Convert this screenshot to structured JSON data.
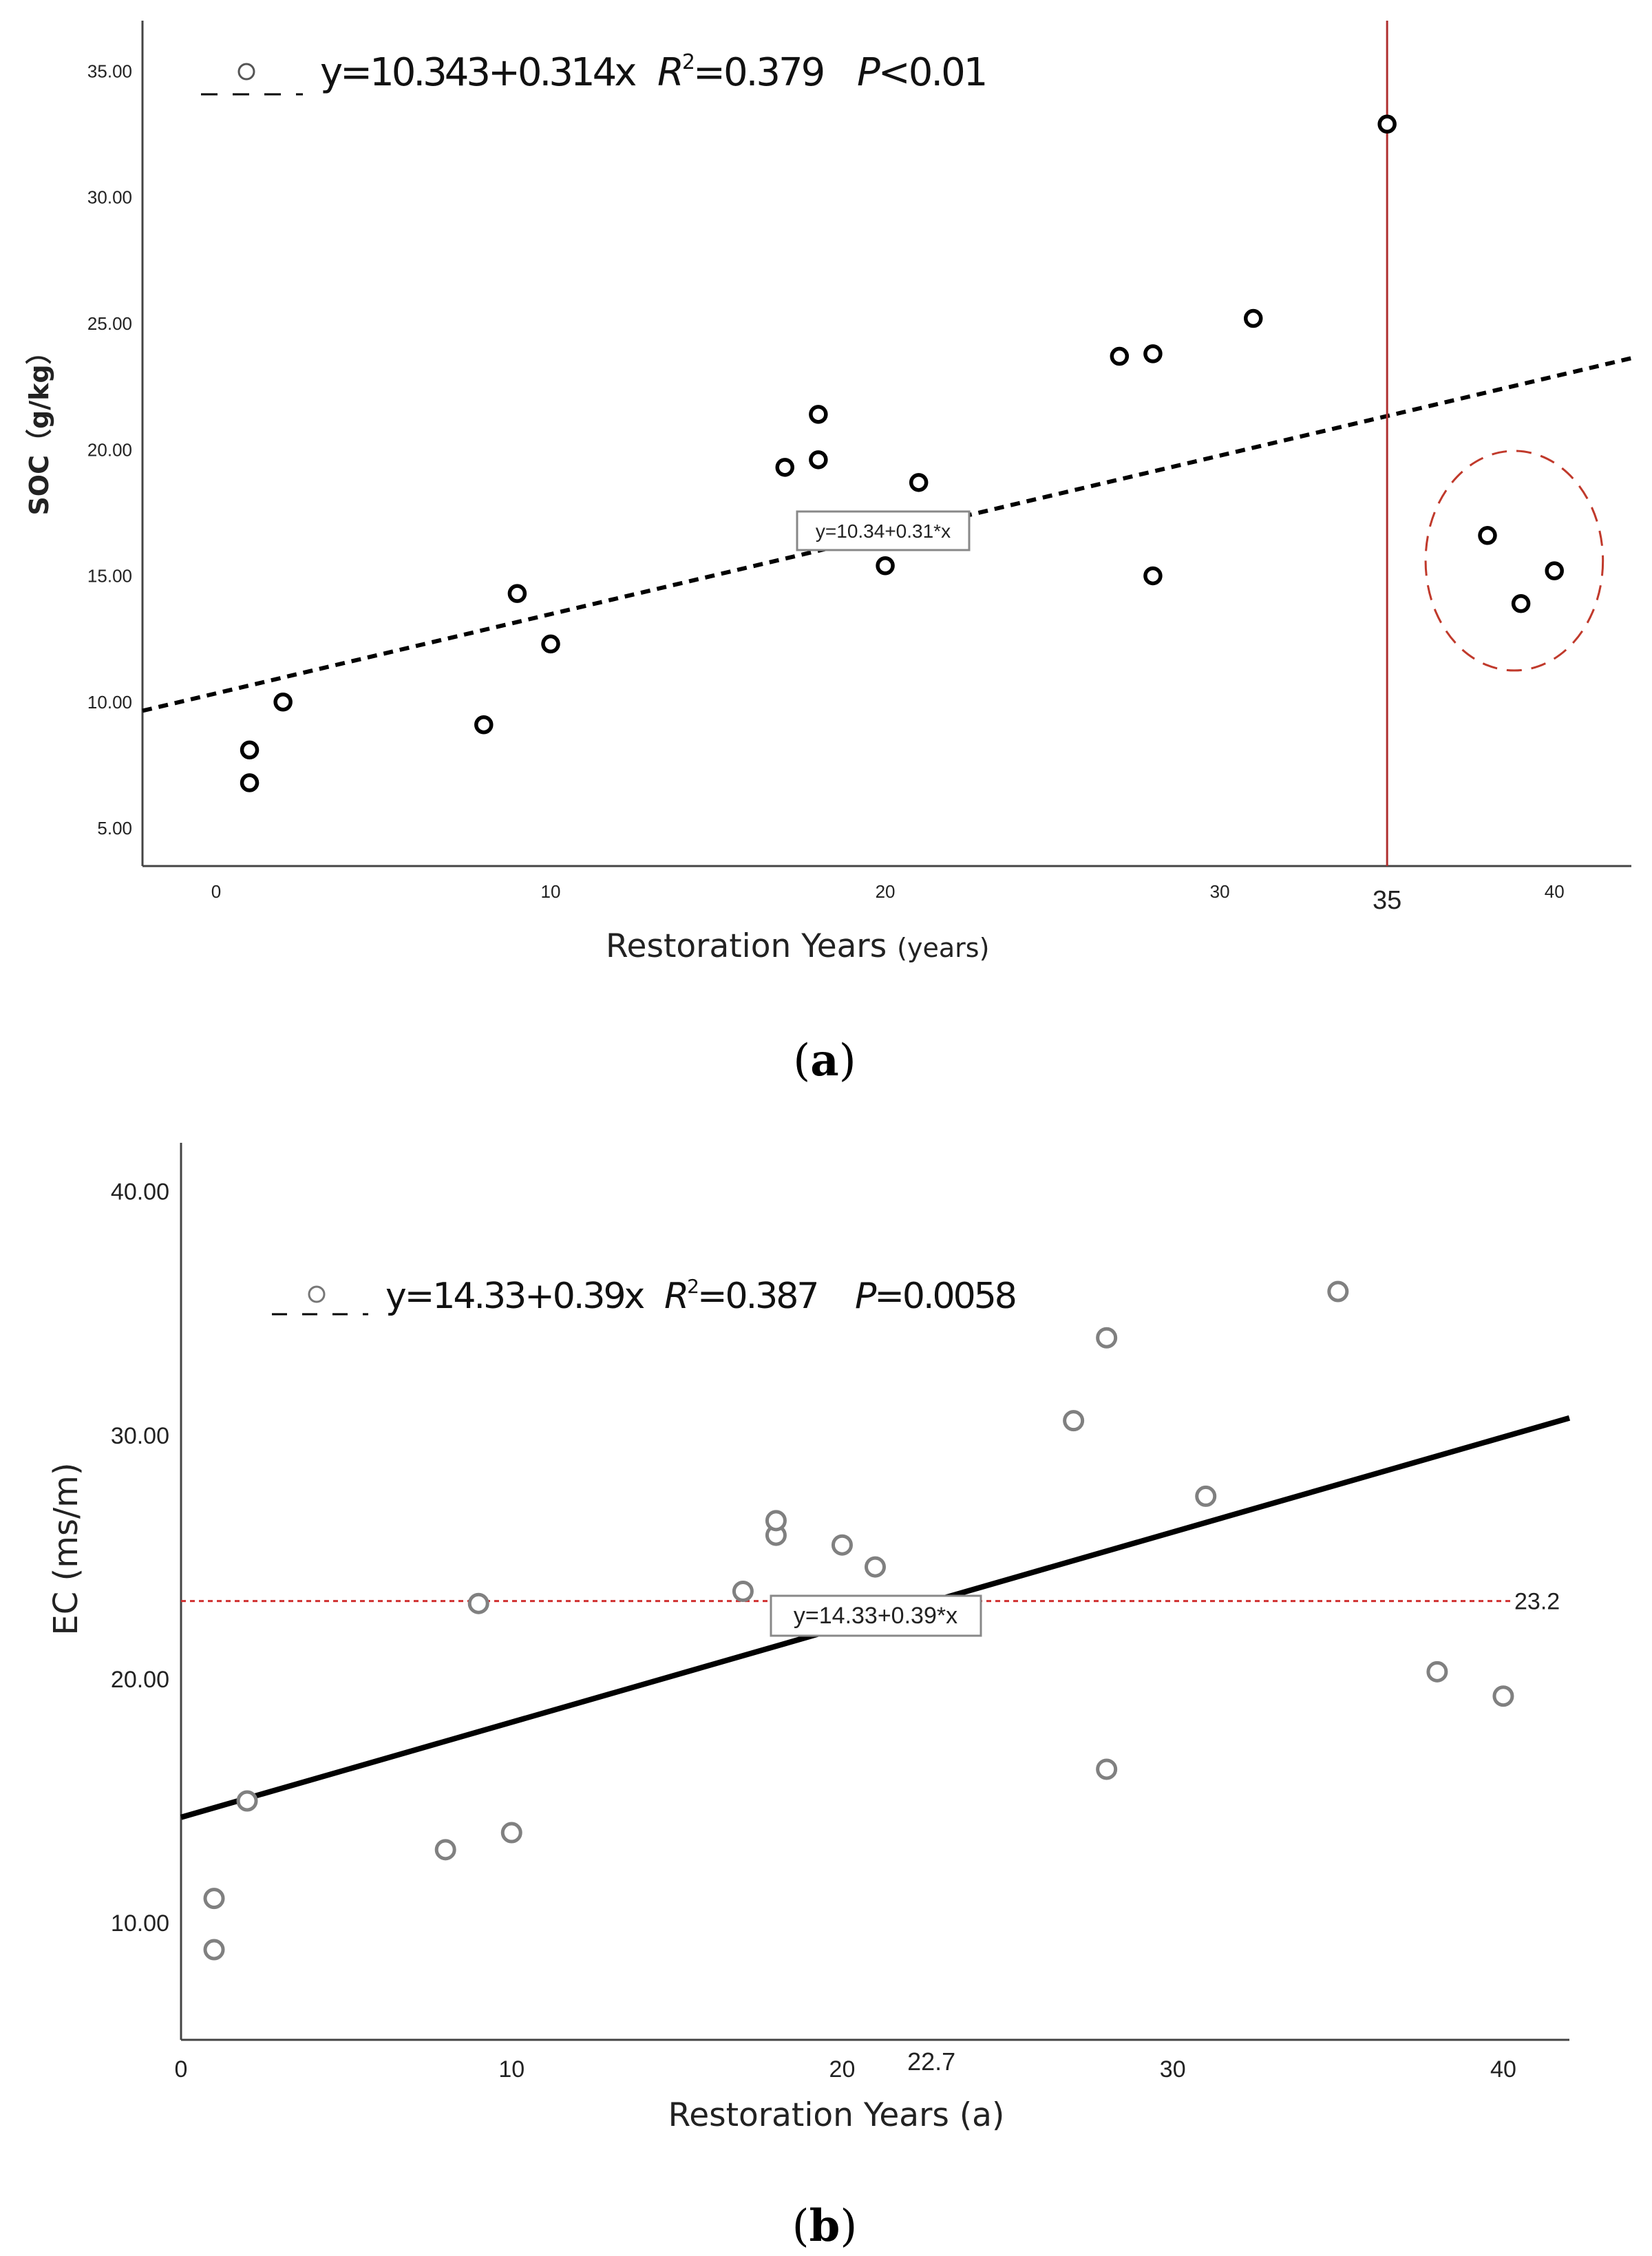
{
  "chart_data": [
    {
      "panel_label_open": "(",
      "panel_label_letter": "a",
      "panel_label_close": ")",
      "type": "scatter",
      "xlabel_main": "Restoration Years ",
      "xlabel_unit": "(years)",
      "ylabel": "SOC（g/kg）",
      "xlim": [
        -2.2,
        42.3
      ],
      "ylim": [
        3.5,
        37.0
      ],
      "x_ticks": [
        0,
        10,
        20,
        30,
        40
      ],
      "x_tick_labels": [
        "0",
        "10",
        "20",
        "30",
        "40"
      ],
      "y_ticks": [
        5,
        10,
        15,
        20,
        25,
        30,
        35
      ],
      "y_tick_labels": [
        "5.00",
        "10.00",
        "15.00",
        "20.00",
        "25.00",
        "30.00",
        "35.00"
      ],
      "points": [
        {
          "x": 1,
          "y": 6.8
        },
        {
          "x": 1,
          "y": 8.1
        },
        {
          "x": 2,
          "y": 10.0
        },
        {
          "x": 8,
          "y": 9.1
        },
        {
          "x": 9,
          "y": 14.3
        },
        {
          "x": 10,
          "y": 12.3
        },
        {
          "x": 17,
          "y": 19.3
        },
        {
          "x": 18,
          "y": 19.6
        },
        {
          "x": 18,
          "y": 21.4
        },
        {
          "x": 20,
          "y": 15.4
        },
        {
          "x": 21,
          "y": 18.7
        },
        {
          "x": 27,
          "y": 23.7
        },
        {
          "x": 28,
          "y": 23.8
        },
        {
          "x": 28,
          "y": 15.0
        },
        {
          "x": 31,
          "y": 25.2
        },
        {
          "x": 35,
          "y": 32.9
        },
        {
          "x": 38,
          "y": 16.6
        },
        {
          "x": 39,
          "y": 13.9
        },
        {
          "x": 40,
          "y": 15.2
        }
      ],
      "fit": {
        "intercept": 10.343,
        "slope": 0.314,
        "style": "dashed",
        "label": "y=10.34+0.31*x",
        "label_at": [
          20,
          16.7
        ]
      },
      "reference_line": {
        "orientation": "vertical",
        "x": 35,
        "label": "35",
        "color": "#b03030"
      },
      "highlight_ellipse": {
        "cx": 38.8,
        "cy": 15.6,
        "rx": 2.65,
        "ry": 4.35,
        "color": "#c0392b"
      },
      "legend": {
        "eq": "y=10.343+0.314x",
        "r2_label": "R",
        "r2_sup": "2",
        "r2_value": "=0.379",
        "p_label": "P",
        "p_value": "<0.01"
      },
      "marker_color": "#000000"
    },
    {
      "panel_label_open": "(",
      "panel_label_letter": "b",
      "panel_label_close": ")",
      "type": "scatter",
      "xlabel_main": "Restoration Years (a)",
      "ylabel": "EC (ms/m)",
      "xlim": [
        0,
        42
      ],
      "ylim": [
        5.2,
        42.0
      ],
      "x_ticks": [
        0,
        10,
        20,
        30,
        40
      ],
      "x_tick_labels": [
        "0",
        "10",
        "20",
        "30",
        "40"
      ],
      "y_ticks": [
        10,
        20,
        30,
        40
      ],
      "y_tick_labels": [
        "10.00",
        "20.00",
        "30.00",
        "40.00"
      ],
      "points": [
        {
          "x": 1,
          "y": 8.9
        },
        {
          "x": 1,
          "y": 11.0
        },
        {
          "x": 2,
          "y": 15.0
        },
        {
          "x": 8,
          "y": 13.0
        },
        {
          "x": 9,
          "y": 23.1
        },
        {
          "x": 10,
          "y": 13.7
        },
        {
          "x": 17,
          "y": 23.6
        },
        {
          "x": 18,
          "y": 25.9
        },
        {
          "x": 18,
          "y": 26.5
        },
        {
          "x": 20,
          "y": 25.5
        },
        {
          "x": 21,
          "y": 24.6
        },
        {
          "x": 27,
          "y": 30.6
        },
        {
          "x": 28,
          "y": 34.0
        },
        {
          "x": 28,
          "y": 16.3
        },
        {
          "x": 31,
          "y": 27.5
        },
        {
          "x": 35,
          "y": 35.9
        },
        {
          "x": 38,
          "y": 20.3
        },
        {
          "x": 40,
          "y": 19.3
        }
      ],
      "fit": {
        "intercept": 14.33,
        "slope": 0.39,
        "style": "solid",
        "label": "y=14.33+0.39*x",
        "label_at": [
          21.8,
          22.1
        ]
      },
      "reference_line": {
        "orientation": "horizontal",
        "y": 23.2,
        "label": "23.2",
        "color": "#d03030"
      },
      "axis_annotation": {
        "x": 22.7,
        "label": "22.7"
      },
      "legend": {
        "eq": "y=14.33+0.39x",
        "r2_label": "R",
        "r2_sup": "2",
        "r2_value": "=0.387",
        "p_label": "P",
        "p_value": "=0.0058"
      },
      "marker_color": "#808080"
    }
  ]
}
